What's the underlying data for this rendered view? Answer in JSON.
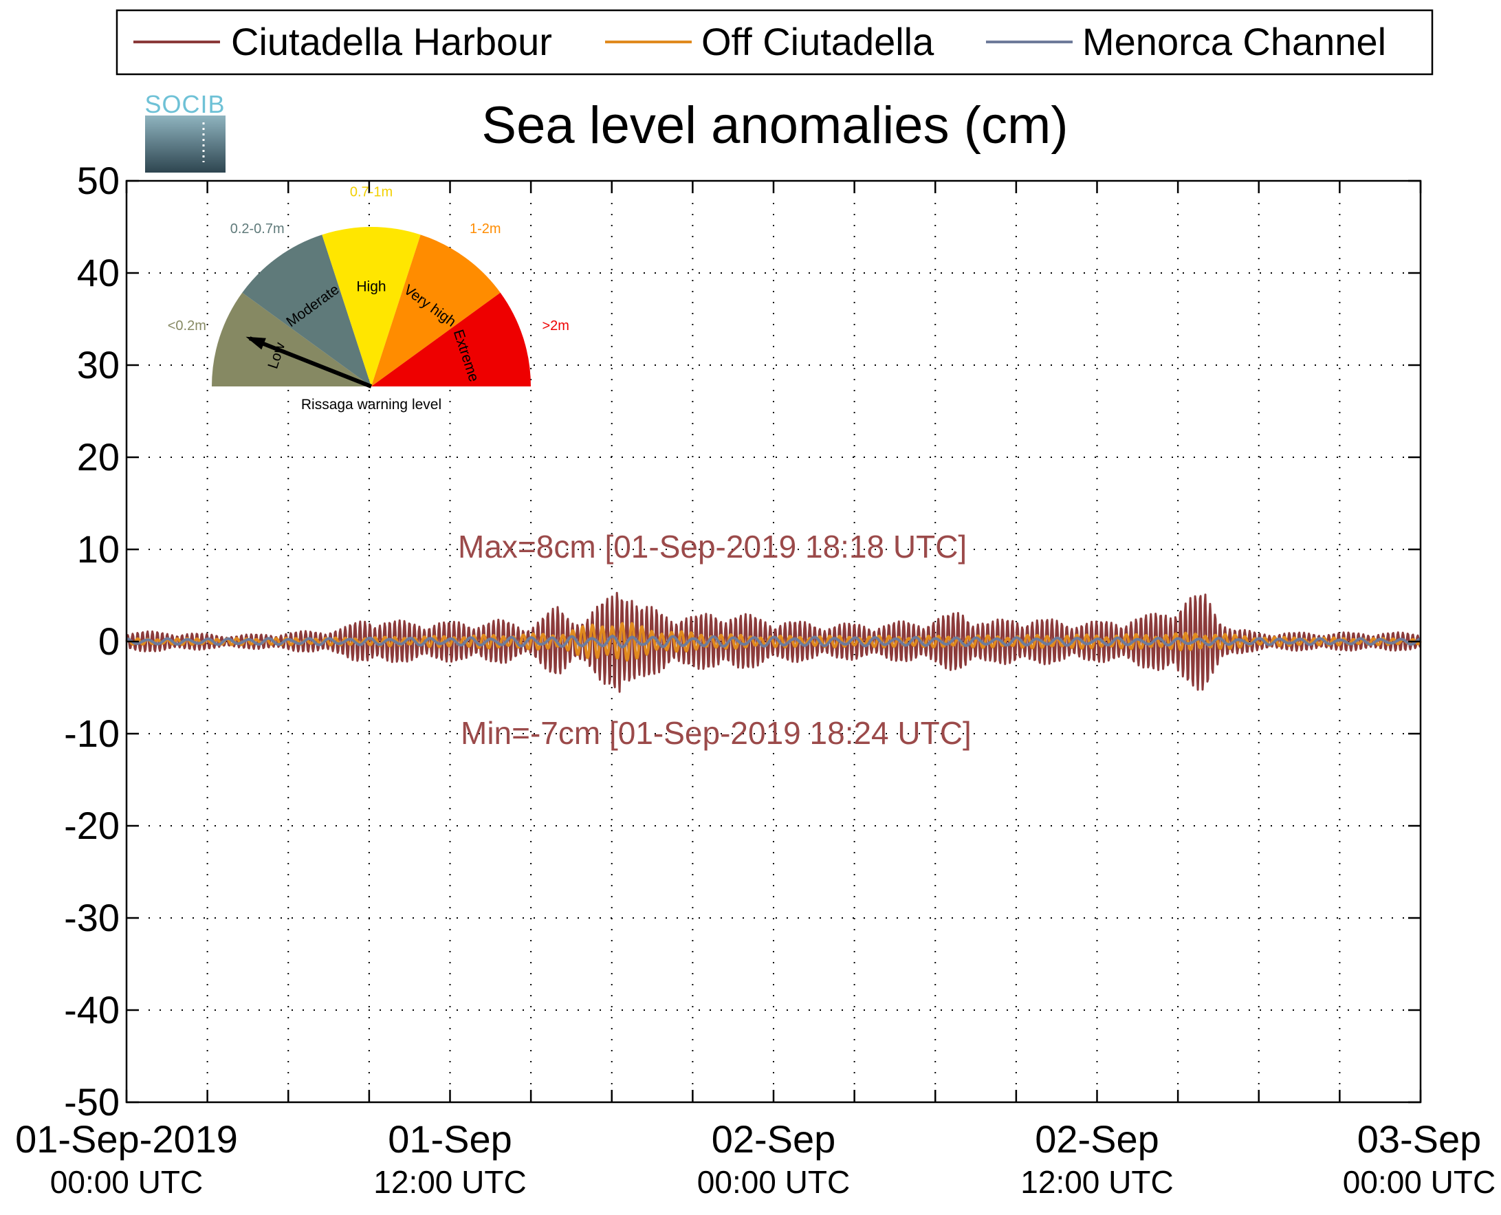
{
  "logo": {
    "text": "SOCIB"
  },
  "chart_data": {
    "type": "line",
    "title": "Sea level anomalies (cm)",
    "ylim": [
      -50,
      50
    ],
    "yticks": [
      50,
      40,
      30,
      20,
      10,
      0,
      -10,
      -20,
      -30,
      -40,
      -50
    ],
    "xlim_hours": [
      0,
      48
    ],
    "xticks": [
      {
        "date": "01-Sep-2019",
        "time": "00:00 UTC"
      },
      {
        "date": "01-Sep",
        "time": "12:00 UTC"
      },
      {
        "date": "02-Sep",
        "time": "00:00 UTC"
      },
      {
        "date": "02-Sep",
        "time": "12:00 UTC"
      },
      {
        "date": "03-Sep",
        "time": "00:00 UTC"
      }
    ],
    "grid": true,
    "legend": {
      "placement": "top",
      "entries": [
        {
          "name": "Ciutadella Harbour",
          "color": "#8B3A3A"
        },
        {
          "name": "Off Ciutadella",
          "color": "#E08A1E"
        },
        {
          "name": "Menorca Channel",
          "color": "#6E7B9A"
        }
      ]
    },
    "annotations": {
      "max": {
        "text": "Max=8cm [01-Sep-2019 18:18 UTC]",
        "value": 8
      },
      "min": {
        "text": "Min=-7cm [01-Sep-2019 18:24 UTC]",
        "value": -7
      },
      "color": "#9B4A4A"
    },
    "series": [
      {
        "name": "Ciutadella Harbour",
        "color": "#8B3A3A",
        "envelope_hours": [
          0,
          2,
          4,
          6,
          8,
          9,
          10,
          12,
          14,
          15,
          16,
          17,
          18,
          18.3,
          18.6,
          19,
          20,
          21,
          22,
          24,
          25,
          26,
          28,
          30,
          31,
          32,
          33,
          34,
          36,
          38,
          38.5,
          39,
          40,
          41,
          42,
          44,
          46,
          48
        ],
        "envelope_amplitude_cm": [
          1.2,
          1.0,
          0.7,
          1.0,
          1.5,
          2.8,
          2.3,
          2.2,
          2.4,
          1.8,
          4.0,
          2.5,
          5.5,
          8.0,
          7.0,
          4.0,
          3.5,
          2.8,
          3.5,
          2.5,
          2.2,
          2.0,
          2.0,
          2.6,
          3.5,
          2.2,
          2.8,
          2.5,
          2.2,
          3.0,
          3.8,
          4.5,
          5.5,
          1.5,
          1.0,
          1.0,
          1.0,
          1.0
        ]
      },
      {
        "name": "Off Ciutadella",
        "color": "#E08A1E",
        "envelope_hours": [
          0,
          8,
          12,
          16,
          18,
          19,
          20,
          22,
          24,
          30,
          34,
          38,
          40,
          42,
          48
        ],
        "envelope_amplitude_cm": [
          0.3,
          0.4,
          0.6,
          0.9,
          2.5,
          1.8,
          1.2,
          0.8,
          0.6,
          0.6,
          0.7,
          0.8,
          1.0,
          0.5,
          0.3
        ]
      },
      {
        "name": "Menorca Channel",
        "color": "#6E7B9A",
        "envelope_hours": [
          0,
          12,
          18,
          24,
          36,
          48
        ],
        "envelope_amplitude_cm": [
          0.3,
          0.4,
          0.6,
          0.5,
          0.4,
          0.3
        ]
      }
    ]
  },
  "gauge": {
    "caption": "Rissaga warning level",
    "current_level": "Low",
    "segments": [
      {
        "label": "Low",
        "range": "<0.2m",
        "color": "#868963",
        "range_color": "#868963"
      },
      {
        "label": "Moderate",
        "range": "0.2-0.7m",
        "color": "#5F7A7A",
        "range_color": "#5F7A7A"
      },
      {
        "label": "High",
        "range": "0.7-1m",
        "color": "#FFE600",
        "range_color": "#F2D000"
      },
      {
        "label": "Very high",
        "range": "1-2m",
        "color": "#FF8C00",
        "range_color": "#FF8C00"
      },
      {
        "label": "Extreme",
        "range": ">2m",
        "color": "#EE0000",
        "range_color": "#EE0000"
      }
    ]
  }
}
